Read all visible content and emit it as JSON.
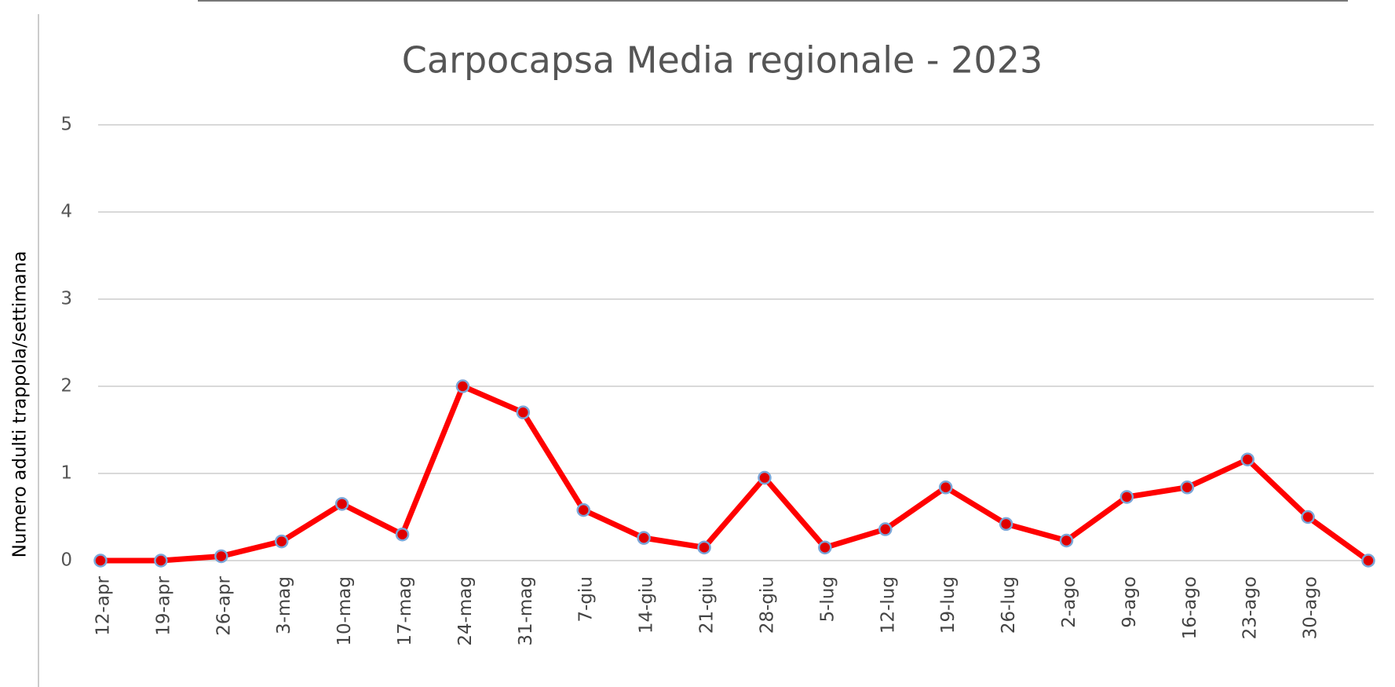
{
  "chart_data": {
    "type": "line",
    "title": "Carpocapsa Media regionale - 2023",
    "y_label": "Numero adulti trappola/settimana",
    "categories": [
      "12-apr",
      "19-apr",
      "26-apr",
      "3-mag",
      "10-mag",
      "17-mag",
      "24-mag",
      "31-mag",
      "7-giu",
      "14-giu",
      "21-giu",
      "28-giu",
      "5-lug",
      "12-lug",
      "19-lug",
      "26-lug",
      "2-ago",
      "9-ago",
      "16-ago",
      "23-ago",
      "30-ago",
      null
    ],
    "series": [
      {
        "color": "#ff0000",
        "values": [
          0,
          0,
          0.05,
          0.22,
          0.65,
          0.3,
          2.0,
          1.7,
          0.58,
          0.26,
          0.15,
          0.95,
          0.15,
          0.36,
          0.84,
          0.42,
          0.23,
          0.73,
          0.84,
          1.16,
          0.5,
          0
        ]
      }
    ],
    "marker_color": "#e00000",
    "marker_edge": "#7aa6d8",
    "ylim": [
      0,
      5
    ],
    "yticks": [
      0,
      1,
      2,
      3,
      4,
      5
    ],
    "grid": true
  }
}
